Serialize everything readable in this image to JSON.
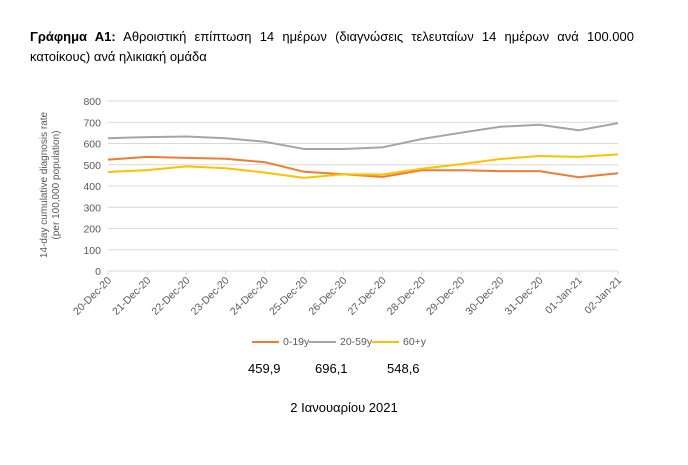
{
  "caption": {
    "prefix": "Γράφημα Α1:",
    "text": "Αθροιστική επίπτωση 14 ημέρων (διαγνώσεις τελευταίων 14 ημέρων ανά 100.000 κατοίκους) ανά ηλικιακή ομάδα"
  },
  "chart_data": {
    "type": "line",
    "title": "",
    "ylabel_line1": "14-day cumulative diagnosis rate",
    "ylabel_line2": "(per 100,000 population)",
    "xlabel": "",
    "ylim": [
      0,
      800
    ],
    "yticks": [
      0,
      100,
      200,
      300,
      400,
      500,
      600,
      700,
      800
    ],
    "grid": true,
    "legend_position": "bottom",
    "categories": [
      "20-Dec-20",
      "21-Dec-20",
      "22-Dec-20",
      "23-Dec-20",
      "24-Dec-20",
      "25-Dec-20",
      "26-Dec-20",
      "27-Dec-20",
      "28-Dec-20",
      "29-Dec-20",
      "30-Dec-20",
      "31-Dec-20",
      "01-Jan-21",
      "02-Jan-21"
    ],
    "series": [
      {
        "name": "0-19y",
        "color": "#ED7D31",
        "values": [
          524,
          537,
          532,
          528,
          512,
          467,
          455,
          443,
          474,
          474,
          470,
          470,
          441,
          459.9
        ]
      },
      {
        "name": "20-59y",
        "color": "#A5A5A5",
        "values": [
          625,
          630,
          633,
          625,
          608,
          574,
          574,
          582,
          621,
          651,
          679,
          688,
          662,
          696.1
        ]
      },
      {
        "name": "60+y",
        "color": "#FFC000",
        "values": [
          466,
          475,
          492,
          484,
          463,
          438,
          455,
          454,
          481,
          503,
          527,
          541,
          537,
          548.6
        ]
      }
    ]
  },
  "last_values": [
    "459,9",
    "696,1",
    "548,6"
  ],
  "footer_date": "2 Ιανουαρίου 2021"
}
